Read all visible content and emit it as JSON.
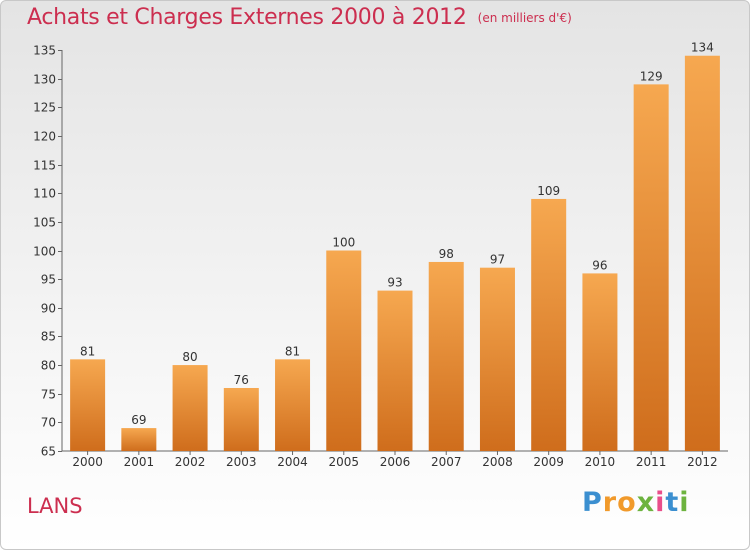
{
  "title": "Achats et Charges Externes 2000 à 2012",
  "subtitle": "(en milliers d'€)",
  "place": "LANS",
  "logo": {
    "letters": [
      "P",
      "r",
      "o",
      "x",
      "i",
      "t",
      "i"
    ],
    "colors": [
      "#3b8fd0",
      "#f19a2b",
      "#f19a2b",
      "#6db33f",
      "#e94e8a",
      "#3b8fd0",
      "#6db33f"
    ]
  },
  "colors": {
    "title": "#cc2e4f",
    "bar_top": "#f6a850",
    "bar_bottom": "#cf6d1c",
    "axis": "#666666",
    "grid_tick": "#666666"
  },
  "chart_data": {
    "type": "bar",
    "categories": [
      "2000",
      "2001",
      "2002",
      "2003",
      "2004",
      "2005",
      "2006",
      "2007",
      "2008",
      "2009",
      "2010",
      "2011",
      "2012"
    ],
    "values": [
      81,
      69,
      80,
      76,
      81,
      100,
      93,
      98,
      97,
      109,
      96,
      129,
      134
    ],
    "ylim": [
      65,
      135
    ],
    "yticks": [
      65,
      70,
      75,
      80,
      85,
      90,
      95,
      100,
      105,
      110,
      115,
      120,
      125,
      130,
      135
    ],
    "xlabel": "",
    "ylabel": "",
    "grid": false,
    "legend": "none"
  }
}
